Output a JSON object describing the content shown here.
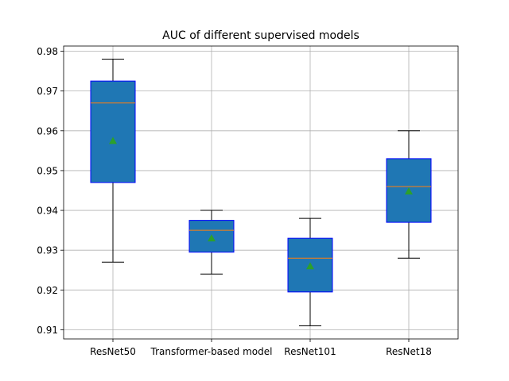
{
  "chart_data": {
    "type": "box",
    "title": "AUC of different supervised models",
    "xlabel": "",
    "ylabel": "",
    "ylim": [
      0.9077,
      0.9813
    ],
    "yticks": [
      "0.91",
      "0.92",
      "0.93",
      "0.94",
      "0.95",
      "0.96",
      "0.97",
      "0.98"
    ],
    "ytick_values": [
      0.91,
      0.92,
      0.93,
      0.94,
      0.95,
      0.96,
      0.97,
      0.98
    ],
    "categories": [
      "ResNet50",
      "Transformer-based model",
      "ResNet101",
      "ResNet18"
    ],
    "boxes": [
      {
        "whisker_low": 0.927,
        "q1": 0.947,
        "median": 0.967,
        "q3": 0.9725,
        "whisker_high": 0.978,
        "mean": 0.9575
      },
      {
        "whisker_low": 0.924,
        "q1": 0.9295,
        "median": 0.935,
        "q3": 0.9375,
        "whisker_high": 0.94,
        "mean": 0.933
      },
      {
        "whisker_low": 0.911,
        "q1": 0.9195,
        "median": 0.928,
        "q3": 0.933,
        "whisker_high": 0.938,
        "mean": 0.926
      },
      {
        "whisker_low": 0.928,
        "q1": 0.937,
        "median": 0.946,
        "q3": 0.953,
        "whisker_high": 0.96,
        "mean": 0.9448
      }
    ],
    "grid": true,
    "colors": {
      "box_fill": "#1f77b4",
      "box_edge": "#0000ff",
      "median": "#ff7f0e",
      "mean_marker": "#2ca02c",
      "whisker": "#000000",
      "grid": "#b0b0b0"
    }
  }
}
